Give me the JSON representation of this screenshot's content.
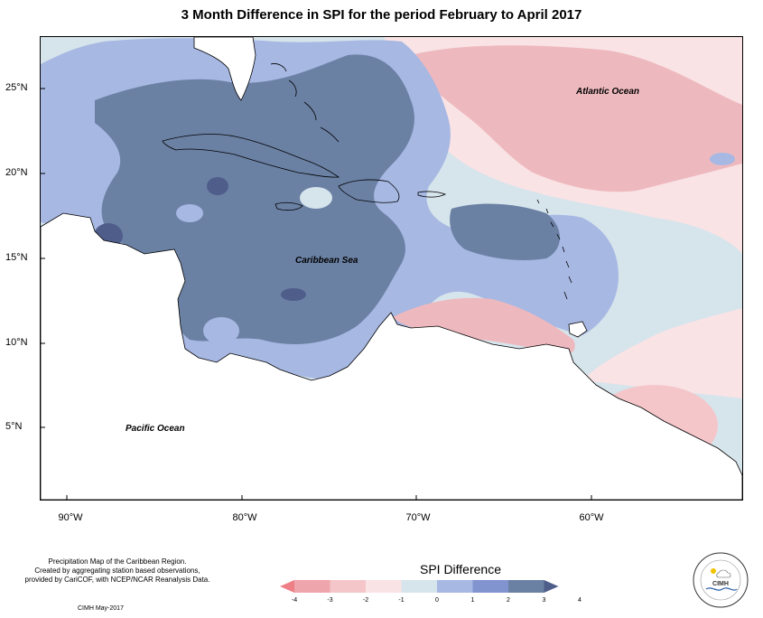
{
  "title": "3 Month Difference in SPI for the period February to April 2017",
  "map": {
    "labels": {
      "atlantic": "Atlantic Ocean",
      "caribbean": "Caribbean Sea",
      "pacific": "Pacific Ocean"
    },
    "latitude_ticks": [
      "25°N",
      "20°N",
      "15°N",
      "10°N",
      "5°N"
    ],
    "longitude_ticks": [
      "90°W",
      "80°W",
      "70°W",
      "60°W"
    ],
    "colors": {
      "land": "#ffffff",
      "coast": "#000000"
    }
  },
  "legend": {
    "title": "SPI Difference",
    "ticks": [
      "-4",
      "-3",
      "-2",
      "-1",
      "0",
      "1",
      "2",
      "3",
      "4"
    ],
    "colors": [
      "#ef7f87",
      "#eea5ab",
      "#f4c6ca",
      "#f9e3e5",
      "#d6e4ec",
      "#a7b8e3",
      "#8294cf",
      "#6b81a4",
      "#4f5d8a"
    ]
  },
  "footer": {
    "line1": "Precipitation Map of the Caribbean Region.",
    "line2": "Created by aggregating station based observations,",
    "line3": "provided by CariCOF, with NCEP/NCAR Reanalysis Data.",
    "credit": "CIMH May-2017"
  },
  "logo": {
    "name": "CIMH"
  }
}
